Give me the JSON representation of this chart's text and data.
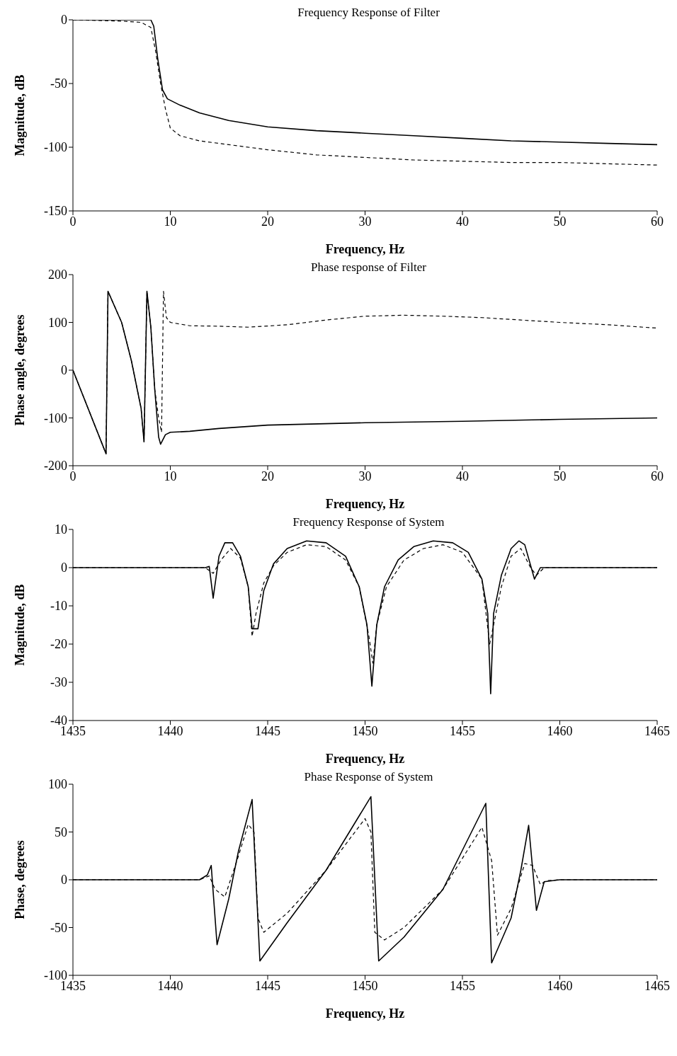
{
  "chart_data": [
    {
      "type": "line",
      "title": "Frequency Response of Filter",
      "xlabel": "Frequency, Hz",
      "ylabel": "Magnitude, dB",
      "xlim": [
        0,
        60
      ],
      "ylim": [
        -150,
        0
      ],
      "xticks": [
        0,
        10,
        20,
        30,
        40,
        50,
        60
      ],
      "yticks": [
        -150,
        -100,
        -50,
        0
      ],
      "grid": false,
      "series": [
        {
          "color": "#000000",
          "line_style": "solid",
          "x": [
            0,
            5,
            8,
            8.3,
            8.7,
            9.2,
            9.7,
            11,
            13,
            16,
            20,
            25,
            30,
            35,
            40,
            45,
            50,
            55,
            60
          ],
          "values": [
            0,
            0,
            0,
            -5,
            -30,
            -55,
            -62,
            -67,
            -73,
            -79,
            -84,
            -87,
            -89,
            -91,
            -93,
            -95,
            -96,
            -97,
            -98
          ]
        },
        {
          "color": "#000000",
          "line_style": "dashed",
          "x": [
            0,
            5,
            7,
            8,
            8.5,
            9,
            9.5,
            10,
            11,
            13,
            16,
            20,
            25,
            30,
            35,
            40,
            45,
            50,
            55,
            60
          ],
          "values": [
            0,
            -1,
            -2,
            -6,
            -25,
            -50,
            -70,
            -85,
            -91,
            -95,
            -98,
            -102,
            -106,
            -108,
            -110,
            -111,
            -112,
            -112,
            -113,
            -114
          ]
        }
      ]
    },
    {
      "type": "line",
      "title": "Phase response of Filter",
      "xlabel": "Frequency, Hz",
      "ylabel": "Phase angle, degrees",
      "xlim": [
        0,
        60
      ],
      "ylim": [
        -200,
        200
      ],
      "xticks": [
        0,
        10,
        20,
        30,
        40,
        50,
        60
      ],
      "yticks": [
        -200,
        -100,
        0,
        100,
        200
      ],
      "grid": false,
      "series": [
        {
          "color": "#000000",
          "line_style": "solid",
          "x": [
            0,
            3.4,
            3.6,
            5,
            6,
            7,
            7.3,
            7.6,
            8,
            8.4,
            8.8,
            9,
            9.5,
            10,
            12,
            15,
            20,
            30,
            40,
            50,
            60
          ],
          "values": [
            0,
            -175,
            165,
            100,
            20,
            -80,
            -150,
            165,
            90,
            -40,
            -140,
            -155,
            -135,
            -130,
            -128,
            -122,
            -115,
            -110,
            -107,
            -103,
            -100
          ]
        },
        {
          "color": "#000000",
          "line_style": "dashed",
          "x": [
            0,
            3.4,
            3.6,
            5,
            6,
            7,
            7.3,
            7.6,
            8,
            8.4,
            8.8,
            9.1,
            9.3,
            9.6,
            10,
            12,
            15,
            18,
            22,
            26,
            30,
            34,
            38,
            42,
            46,
            50,
            55,
            60
          ],
          "values": [
            0,
            -175,
            165,
            100,
            20,
            -80,
            -150,
            165,
            90,
            -40,
            -100,
            -130,
            165,
            110,
            100,
            93,
            92,
            90,
            95,
            105,
            113,
            115,
            113,
            110,
            105,
            100,
            95,
            88
          ]
        }
      ]
    },
    {
      "type": "line",
      "title": "Frequency Response of System",
      "xlabel": "Frequency, Hz",
      "ylabel": "Magnitude, dB",
      "xlim": [
        1435,
        1465
      ],
      "ylim": [
        -40,
        10
      ],
      "xticks": [
        1435,
        1440,
        1445,
        1450,
        1455,
        1460,
        1465
      ],
      "yticks": [
        -40,
        -30,
        -20,
        -10,
        0,
        10
      ],
      "grid": false,
      "series": [
        {
          "color": "#000000",
          "line_style": "solid",
          "x": [
            1435,
            1441.8,
            1442,
            1442.2,
            1442.5,
            1442.8,
            1443.2,
            1443.6,
            1444,
            1444.2,
            1444.5,
            1444.8,
            1445.3,
            1446,
            1447,
            1448,
            1449,
            1449.7,
            1450.1,
            1450.35,
            1450.6,
            1451,
            1451.7,
            1452.5,
            1453.5,
            1454.5,
            1455.3,
            1456,
            1456.3,
            1456.45,
            1456.6,
            1457,
            1457.5,
            1457.9,
            1458.2,
            1458.7,
            1459,
            1465
          ],
          "values": [
            0,
            0,
            0.3,
            -8,
            3,
            6.5,
            6.5,
            3,
            -5,
            -16,
            -16,
            -6,
            1,
            5,
            7,
            6.5,
            3,
            -5,
            -15,
            -31,
            -15,
            -5,
            2,
            5.5,
            7,
            6.5,
            4,
            -3,
            -12,
            -33,
            -12,
            -2,
            5,
            7,
            6,
            -3,
            0,
            0
          ]
        },
        {
          "color": "#000000",
          "line_style": "dashed",
          "x": [
            1435,
            1441.8,
            1442.2,
            1442.6,
            1443.1,
            1443.6,
            1444,
            1444.2,
            1444.4,
            1444.8,
            1445.3,
            1446,
            1447,
            1448,
            1449,
            1449.7,
            1450.2,
            1450.4,
            1450.6,
            1451.1,
            1452,
            1453,
            1454,
            1455,
            1456,
            1456.4,
            1456.6,
            1457,
            1457.5,
            1458,
            1458.5,
            1458.8,
            1459.2,
            1465
          ],
          "values": [
            0,
            0,
            -1.5,
            2,
            5,
            2.5,
            -5,
            -18,
            -12,
            -4,
            0.5,
            4,
            6,
            5.5,
            2,
            -5,
            -18,
            -25,
            -15,
            -5,
            2,
            5,
            6,
            4,
            -3,
            -20,
            -15,
            -5,
            3,
            5,
            0,
            -2,
            0,
            0
          ]
        }
      ]
    },
    {
      "type": "line",
      "title": "Phase Response of System",
      "xlabel": "Frequency, Hz",
      "ylabel": "Phase, degrees",
      "xlim": [
        1435,
        1465
      ],
      "ylim": [
        -100,
        100
      ],
      "xticks": [
        1435,
        1440,
        1445,
        1450,
        1455,
        1460,
        1465
      ],
      "yticks": [
        -100,
        -50,
        0,
        50,
        100
      ],
      "grid": false,
      "series": [
        {
          "color": "#000000",
          "line_style": "solid",
          "x": [
            1435,
            1441.5,
            1441.9,
            1442.1,
            1442.4,
            1443,
            1443.5,
            1444.2,
            1444.6,
            1446,
            1448,
            1450.3,
            1450.7,
            1452,
            1454,
            1456.2,
            1456.5,
            1457.5,
            1458,
            1458.4,
            1458.8,
            1459.2,
            1460,
            1465
          ],
          "values": [
            0,
            0,
            5,
            15,
            -68,
            -20,
            30,
            84,
            -85,
            -45,
            10,
            87,
            -85,
            -60,
            -10,
            80,
            -87,
            -40,
            10,
            57,
            -32,
            -2,
            0,
            0
          ]
        },
        {
          "color": "#000000",
          "line_style": "dashed",
          "x": [
            1435,
            1441.5,
            1442,
            1442.3,
            1442.8,
            1443.5,
            1444,
            1444.3,
            1444.5,
            1444.8,
            1446,
            1448,
            1450,
            1450.3,
            1450.5,
            1451,
            1452,
            1454,
            1456,
            1456.5,
            1456.8,
            1457.5,
            1458.2,
            1458.6,
            1459,
            1459.3,
            1460,
            1465
          ],
          "values": [
            0,
            0,
            4,
            -10,
            -18,
            25,
            58,
            50,
            -40,
            -55,
            -35,
            10,
            64,
            50,
            -55,
            -63,
            -50,
            -10,
            55,
            20,
            -58,
            -30,
            17,
            15,
            -5,
            -1,
            0,
            0
          ]
        }
      ]
    }
  ]
}
